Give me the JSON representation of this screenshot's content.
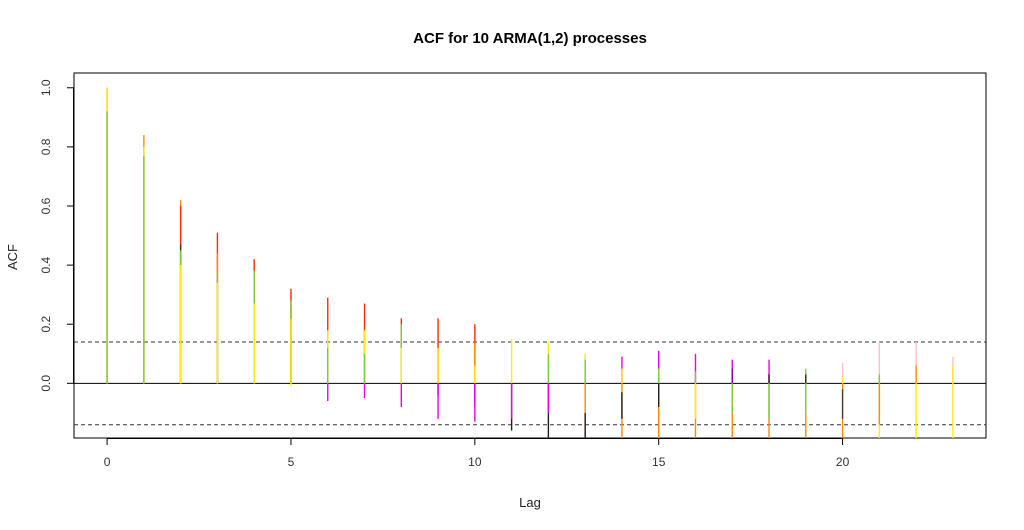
{
  "chart_data": {
    "type": "acf",
    "title": "ACF for 10 ARMA(1,2) processes",
    "xlabel": "Lag",
    "ylabel": "ACF",
    "xlim": [
      -0.9,
      23.9
    ],
    "ylim": [
      -0.185,
      1.05
    ],
    "x_ticks": [
      0,
      5,
      10,
      15,
      20
    ],
    "x_tick_labels": [
      "0",
      "5",
      "10",
      "15",
      "20"
    ],
    "y_ticks": [
      0.0,
      0.2,
      0.4,
      0.6,
      0.8,
      1.0
    ],
    "y_tick_labels": [
      "0.0",
      "0.2",
      "0.4",
      "0.6",
      "0.8",
      "1.0"
    ],
    "zero_line": 0,
    "confidence_bound": 0.14,
    "lower_bound_line": -0.14,
    "grid": false,
    "lags": [
      0,
      1,
      2,
      3,
      4,
      5,
      6,
      7,
      8,
      9,
      10,
      11,
      12,
      13,
      14,
      15,
      16,
      17,
      18,
      19,
      20,
      21,
      22,
      23
    ],
    "segments": [
      {
        "lag": 0,
        "from": 0.0,
        "to": 1.0,
        "color": "#ff8c00"
      },
      {
        "lag": 0,
        "from": 0.0,
        "to": 1.0,
        "color": "#ffee00"
      },
      {
        "lag": 0,
        "from": 0.0,
        "to": 0.92,
        "color": "#7ccd3a"
      },
      {
        "lag": 1,
        "from": 0.0,
        "to": 0.84,
        "color": "#ff8c00"
      },
      {
        "lag": 1,
        "from": 0.0,
        "to": 0.8,
        "color": "#ffee00"
      },
      {
        "lag": 1,
        "from": 0.0,
        "to": 0.77,
        "color": "#7ccd3a"
      },
      {
        "lag": 2,
        "from": 0.0,
        "to": 0.62,
        "color": "#ff8c00"
      },
      {
        "lag": 2,
        "from": 0.0,
        "to": 0.6,
        "color": "#ff2a00"
      },
      {
        "lag": 2,
        "from": 0.0,
        "to": 0.47,
        "color": "#5c2f1a"
      },
      {
        "lag": 2,
        "from": 0.0,
        "to": 0.45,
        "color": "#7ccd3a"
      },
      {
        "lag": 2,
        "from": 0.0,
        "to": 0.4,
        "color": "#ffee00"
      },
      {
        "lag": 3,
        "from": 0.0,
        "to": 0.51,
        "color": "#ff2a00"
      },
      {
        "lag": 3,
        "from": 0.0,
        "to": 0.44,
        "color": "#ff8c00"
      },
      {
        "lag": 3,
        "from": 0.0,
        "to": 0.38,
        "color": "#7ccd3a"
      },
      {
        "lag": 3,
        "from": 0.0,
        "to": 0.34,
        "color": "#ffee00"
      },
      {
        "lag": 4,
        "from": 0.0,
        "to": 0.42,
        "color": "#ff2a00"
      },
      {
        "lag": 4,
        "from": 0.0,
        "to": 0.38,
        "color": "#7ccd3a"
      },
      {
        "lag": 4,
        "from": 0.0,
        "to": 0.27,
        "color": "#ffee00"
      },
      {
        "lag": 5,
        "from": 0.0,
        "to": 0.32,
        "color": "#ff2a00"
      },
      {
        "lag": 5,
        "from": 0.0,
        "to": 0.25,
        "color": "#ff8c00"
      },
      {
        "lag": 5,
        "from": 0.0,
        "to": 0.28,
        "color": "#7ccd3a"
      },
      {
        "lag": 5,
        "from": -0.01,
        "to": 0.22,
        "color": "#ffee00"
      },
      {
        "lag": 6,
        "from": 0.0,
        "to": 0.29,
        "color": "#ff2a00"
      },
      {
        "lag": 6,
        "from": 0.0,
        "to": 0.18,
        "color": "#ffee00"
      },
      {
        "lag": 6,
        "from": 0.0,
        "to": 0.12,
        "color": "#7ccd3a"
      },
      {
        "lag": 6,
        "from": 0.0,
        "to": -0.06,
        "color": "#ee00ee"
      },
      {
        "lag": 7,
        "from": 0.0,
        "to": 0.27,
        "color": "#ff2a00"
      },
      {
        "lag": 7,
        "from": 0.0,
        "to": 0.18,
        "color": "#ffee00"
      },
      {
        "lag": 7,
        "from": 0.0,
        "to": 0.1,
        "color": "#7ccd3a"
      },
      {
        "lag": 7,
        "from": 0.0,
        "to": -0.05,
        "color": "#ee00ee"
      },
      {
        "lag": 8,
        "from": 0.0,
        "to": 0.22,
        "color": "#ff2a00"
      },
      {
        "lag": 8,
        "from": 0.0,
        "to": 0.2,
        "color": "#7ccd3a"
      },
      {
        "lag": 8,
        "from": 0.0,
        "to": 0.12,
        "color": "#ffee00"
      },
      {
        "lag": 8,
        "from": 0.0,
        "to": -0.08,
        "color": "#ee00ee"
      },
      {
        "lag": 9,
        "from": 0.0,
        "to": 0.22,
        "color": "#ff2a00"
      },
      {
        "lag": 9,
        "from": 0.0,
        "to": 0.12,
        "color": "#ffee00"
      },
      {
        "lag": 9,
        "from": 0.0,
        "to": -0.04,
        "color": "#7a00aa"
      },
      {
        "lag": 9,
        "from": 0.0,
        "to": -0.12,
        "color": "#ee00ee"
      },
      {
        "lag": 10,
        "from": 0.0,
        "to": 0.2,
        "color": "#ff2a00"
      },
      {
        "lag": 10,
        "from": 0.0,
        "to": 0.14,
        "color": "#ff8c00"
      },
      {
        "lag": 10,
        "from": 0.0,
        "to": 0.06,
        "color": "#ffee00"
      },
      {
        "lag": 10,
        "from": 0.0,
        "to": -0.08,
        "color": "#7a00aa"
      },
      {
        "lag": 10,
        "from": 0.0,
        "to": -0.13,
        "color": "#ee00ee"
      },
      {
        "lag": 11,
        "from": 0.0,
        "to": 0.15,
        "color": "#ffee00"
      },
      {
        "lag": 11,
        "from": 0.0,
        "to": -0.16,
        "color": "#222222"
      },
      {
        "lag": 11,
        "from": 0.0,
        "to": -0.12,
        "color": "#ee00ee"
      },
      {
        "lag": 12,
        "from": 0.0,
        "to": 0.14,
        "color": "#ffee00"
      },
      {
        "lag": 12,
        "from": 0.0,
        "to": 0.1,
        "color": "#7ccd3a"
      },
      {
        "lag": 12,
        "from": 0.0,
        "to": -0.185,
        "color": "#222222"
      },
      {
        "lag": 12,
        "from": 0.0,
        "to": -0.1,
        "color": "#ee00ee"
      },
      {
        "lag": 13,
        "from": 0.0,
        "to": 0.1,
        "color": "#ffee00"
      },
      {
        "lag": 13,
        "from": 0.0,
        "to": 0.08,
        "color": "#7ccd3a"
      },
      {
        "lag": 13,
        "from": 0.0,
        "to": -0.185,
        "color": "#ff8c00"
      },
      {
        "lag": 13,
        "from": -0.1,
        "to": -0.185,
        "color": "#222222"
      },
      {
        "lag": 14,
        "from": 0.0,
        "to": 0.09,
        "color": "#ee00ee"
      },
      {
        "lag": 14,
        "from": 0.0,
        "to": 0.05,
        "color": "#ffee00"
      },
      {
        "lag": 14,
        "from": 0.0,
        "to": -0.185,
        "color": "#ff8c00"
      },
      {
        "lag": 14,
        "from": -0.03,
        "to": -0.12,
        "color": "#222222"
      },
      {
        "lag": 15,
        "from": 0.0,
        "to": 0.11,
        "color": "#ee00ee"
      },
      {
        "lag": 15,
        "from": 0.0,
        "to": 0.05,
        "color": "#7ccd3a"
      },
      {
        "lag": 15,
        "from": 0.0,
        "to": -0.185,
        "color": "#ff8c00"
      },
      {
        "lag": 15,
        "from": 0.0,
        "to": -0.08,
        "color": "#222222"
      },
      {
        "lag": 16,
        "from": 0.0,
        "to": 0.1,
        "color": "#ee00ee"
      },
      {
        "lag": 16,
        "from": 0.0,
        "to": 0.04,
        "color": "#7ccd3a"
      },
      {
        "lag": 16,
        "from": 0.0,
        "to": -0.185,
        "color": "#ff8c00"
      },
      {
        "lag": 16,
        "from": 0.0,
        "to": -0.12,
        "color": "#ffee00"
      },
      {
        "lag": 17,
        "from": 0.0,
        "to": 0.08,
        "color": "#ee00ee"
      },
      {
        "lag": 17,
        "from": 0.0,
        "to": 0.05,
        "color": "#7a00aa"
      },
      {
        "lag": 17,
        "from": 0.0,
        "to": -0.185,
        "color": "#ff8c00"
      },
      {
        "lag": 17,
        "from": 0.0,
        "to": -0.1,
        "color": "#7ccd3a"
      },
      {
        "lag": 18,
        "from": 0.0,
        "to": 0.08,
        "color": "#ee00ee"
      },
      {
        "lag": 18,
        "from": 0.0,
        "to": 0.03,
        "color": "#222222"
      },
      {
        "lag": 18,
        "from": 0.0,
        "to": -0.185,
        "color": "#ff8c00"
      },
      {
        "lag": 18,
        "from": 0.0,
        "to": -0.12,
        "color": "#7ccd3a"
      },
      {
        "lag": 19,
        "from": 0.0,
        "to": 0.05,
        "color": "#7ccd3a"
      },
      {
        "lag": 19,
        "from": 0.0,
        "to": 0.03,
        "color": "#222222"
      },
      {
        "lag": 19,
        "from": 0.0,
        "to": -0.185,
        "color": "#ff8c00"
      },
      {
        "lag": 19,
        "from": 0.0,
        "to": -0.1,
        "color": "#7ccd3a"
      },
      {
        "lag": 20,
        "from": 0.0,
        "to": 0.07,
        "color": "#ffc0cb"
      },
      {
        "lag": 20,
        "from": 0.0,
        "to": 0.02,
        "color": "#ffee00"
      },
      {
        "lag": 20,
        "from": 0.0,
        "to": -0.185,
        "color": "#ff8c00"
      },
      {
        "lag": 20,
        "from": -0.02,
        "to": -0.12,
        "color": "#444444"
      },
      {
        "lag": 21,
        "from": 0.0,
        "to": 0.14,
        "color": "#ffc0cb"
      },
      {
        "lag": 21,
        "from": 0.0,
        "to": 0.03,
        "color": "#7ccd3a"
      },
      {
        "lag": 21,
        "from": 0.0,
        "to": -0.185,
        "color": "#ffee00"
      },
      {
        "lag": 21,
        "from": 0.0,
        "to": -0.14,
        "color": "#ff8c00"
      },
      {
        "lag": 22,
        "from": 0.0,
        "to": 0.14,
        "color": "#ffc0cb"
      },
      {
        "lag": 22,
        "from": 0.0,
        "to": 0.06,
        "color": "#ff8c00"
      },
      {
        "lag": 22,
        "from": 0.0,
        "to": -0.185,
        "color": "#ffee00"
      },
      {
        "lag": 23,
        "from": 0.0,
        "to": 0.09,
        "color": "#ffc0cb"
      },
      {
        "lag": 23,
        "from": 0.0,
        "to": 0.06,
        "color": "#ffee00"
      },
      {
        "lag": 23,
        "from": 0.0,
        "to": -0.185,
        "color": "#ffee00"
      }
    ]
  }
}
